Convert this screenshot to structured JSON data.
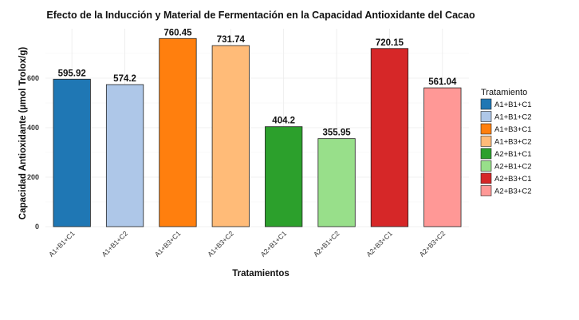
{
  "chart_data": {
    "type": "bar",
    "title": "Efecto de la Inducción y Material de Fermentación en la Capacidad Antioxidante del Cacao",
    "xlabel": "Tratamientos",
    "ylabel": "Capacidad Antioxidante (µmol Trolox/g)",
    "categories": [
      "A1+B1+C1",
      "A1+B1+C2",
      "A1+B3+C1",
      "A1+B3+C2",
      "A2+B1+C1",
      "A2+B1+C2",
      "A2+B3+C1",
      "A2+B3+C2"
    ],
    "values": [
      595.92,
      574.2,
      760.45,
      731.74,
      404.2,
      355.95,
      720.15,
      561.04
    ],
    "value_labels": [
      "595.92",
      "574.2",
      "760.45",
      "731.74",
      "404.2",
      "355.95",
      "720.15",
      "561.04"
    ],
    "colors": [
      "#1f77b4",
      "#aec7e8",
      "#ff7f0e",
      "#ffbb78",
      "#2ca02c",
      "#98df8a",
      "#d62728",
      "#ff9896"
    ],
    "ylim": [
      0,
      800
    ],
    "yticks": [
      0,
      200,
      400,
      600
    ],
    "grid": true,
    "legend": {
      "title": "Tratamiento",
      "position": "right",
      "labels": [
        "A1+B1+C1",
        "A1+B1+C2",
        "A1+B3+C1",
        "A1+B3+C2",
        "A2+B1+C1",
        "A2+B1+C2",
        "A2+B3+C1",
        "A2+B3+C2"
      ]
    }
  }
}
